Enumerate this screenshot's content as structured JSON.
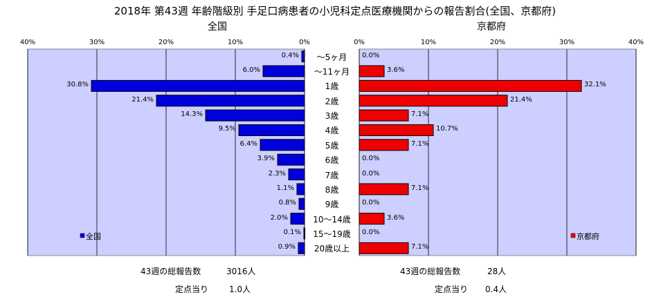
{
  "title": "2018年 第43週 年齢階級別 手足口病患者の小児科定点医療機関からの報告割合(全国、京都府)",
  "colors": {
    "plot_bg": "#cccfff",
    "national_bar": "#0000dd",
    "kyoto_bar": "#ee0000",
    "grid": "#000000"
  },
  "chart_data": [
    {
      "type": "bar",
      "orientation": "horizontal",
      "direction": "right-to-left",
      "title": "全国",
      "categories": [
        "～5ヶ月",
        "～11ヶ月",
        "1歳",
        "2歳",
        "3歳",
        "4歳",
        "5歳",
        "6歳",
        "7歳",
        "8歳",
        "9歳",
        "10～14歳",
        "15～19歳",
        "20歳以上"
      ],
      "series": [
        {
          "name": "全国",
          "values": [
            0.4,
            6.0,
            30.8,
            21.4,
            14.3,
            9.5,
            6.4,
            3.9,
            2.3,
            1.1,
            0.8,
            2.0,
            0.1,
            0.9
          ]
        }
      ],
      "value_labels": [
        "0.4%",
        "6.0%",
        "30.8%",
        "21.4%",
        "14.3%",
        "9.5%",
        "6.4%",
        "3.9%",
        "2.3%",
        "1.1%",
        "0.8%",
        "2.0%",
        "0.1%",
        "0.9%"
      ],
      "xlim": [
        0,
        40
      ],
      "ticks": [
        "40%",
        "30%",
        "20%",
        "10%",
        "0%"
      ],
      "legend_position": "bottom-left",
      "grid": true
    },
    {
      "type": "bar",
      "orientation": "horizontal",
      "direction": "left-to-right",
      "title": "京都府",
      "categories": [
        "～5ヶ月",
        "～11ヶ月",
        "1歳",
        "2歳",
        "3歳",
        "4歳",
        "5歳",
        "6歳",
        "7歳",
        "8歳",
        "9歳",
        "10～14歳",
        "15～19歳",
        "20歳以上"
      ],
      "series": [
        {
          "name": "京都府",
          "values": [
            0.0,
            3.6,
            32.1,
            21.4,
            7.1,
            10.7,
            7.1,
            0.0,
            0.0,
            7.1,
            0.0,
            3.6,
            0.0,
            7.1
          ]
        }
      ],
      "value_labels": [
        "0.0%",
        "3.6%",
        "32.1%",
        "21.4%",
        "7.1%",
        "10.7%",
        "7.1%",
        "0.0%",
        "0.0%",
        "7.1%",
        "0.0%",
        "3.6%",
        "0.0%",
        "7.1%"
      ],
      "xlim": [
        0,
        40
      ],
      "ticks": [
        "0%",
        "10%",
        "20%",
        "30%",
        "40%"
      ],
      "legend_position": "bottom-right",
      "grid": true
    }
  ],
  "stats": {
    "national": {
      "total_label": "43週の総報告数",
      "total_value": "3016人",
      "per_label": "定点当り",
      "per_value": "1.0人"
    },
    "kyoto": {
      "total_label": "43週の総報告数",
      "total_value": "28人",
      "per_label": "定点当り",
      "per_value": "0.4人"
    }
  }
}
